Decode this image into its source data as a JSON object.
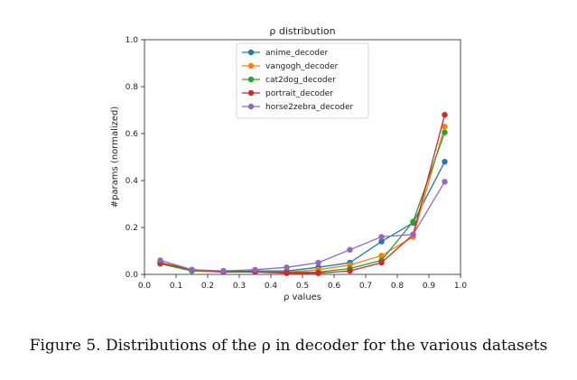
{
  "chart_data": {
    "type": "line",
    "title": "ρ distribution",
    "xlabel": "ρ values",
    "ylabel": "#params (normalized)",
    "xlim": [
      0.0,
      1.0
    ],
    "ylim": [
      0.0,
      1.0
    ],
    "xticks": [
      "0.0",
      "0.1",
      "0.2",
      "0.3",
      "0.4",
      "0.5",
      "0.6",
      "0.7",
      "0.8",
      "0.9",
      "1.0"
    ],
    "yticks": [
      "0.0",
      "0.2",
      "0.4",
      "0.6",
      "0.8",
      "1.0"
    ],
    "grid": false,
    "legend_position": "top-center",
    "x": [
      0.05,
      0.15,
      0.25,
      0.35,
      0.45,
      0.55,
      0.65,
      0.75,
      0.85,
      0.95
    ],
    "series": [
      {
        "name": "anime_decoder",
        "color": "#1f77b4",
        "values": [
          0.05,
          0.015,
          0.01,
          0.015,
          0.015,
          0.03,
          0.05,
          0.14,
          0.22,
          0.48
        ]
      },
      {
        "name": "vangogh_decoder",
        "color": "#ff7f0e",
        "values": [
          0.045,
          0.015,
          0.01,
          0.01,
          0.01,
          0.02,
          0.04,
          0.08,
          0.16,
          0.63
        ]
      },
      {
        "name": "cat2dog_decoder",
        "color": "#2ca02c",
        "values": [
          0.045,
          0.015,
          0.015,
          0.01,
          0.01,
          0.01,
          0.025,
          0.06,
          0.225,
          0.605
        ]
      },
      {
        "name": "portrait_decoder",
        "color": "#d62728",
        "values": [
          0.05,
          0.02,
          0.01,
          0.01,
          0.005,
          0.005,
          0.015,
          0.05,
          0.17,
          0.68
        ]
      },
      {
        "name": "horse2zebra_decoder",
        "color": "#9467bd",
        "values": [
          0.06,
          0.02,
          0.015,
          0.02,
          0.03,
          0.05,
          0.105,
          0.16,
          0.17,
          0.395
        ]
      }
    ]
  },
  "caption": "Figure 5. Distributions of the ρ in decoder for the various datasets"
}
